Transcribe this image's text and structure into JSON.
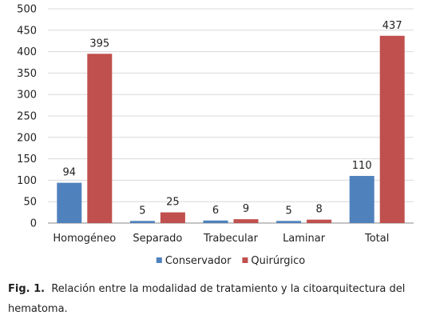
{
  "chart_data": {
    "type": "bar",
    "categories": [
      "Homogéneo",
      "Separado",
      "Trabecular",
      "Laminar",
      "Total"
    ],
    "series": [
      {
        "name": "Conservador",
        "values": [
          94,
          5,
          6,
          5,
          110
        ],
        "color": "#4f81bd"
      },
      {
        "name": "Quirúrgico",
        "values": [
          395,
          25,
          9,
          8,
          437
        ],
        "color": "#c0504d"
      }
    ],
    "ylim": [
      0,
      500
    ],
    "yticks": [
      0,
      50,
      100,
      150,
      200,
      250,
      300,
      350,
      400,
      450,
      500
    ],
    "grid": true,
    "legend": "bottom",
    "data_labels": true
  },
  "caption": {
    "lead": "Fig. 1.",
    "text": "Relación entre la modalidad de tratamiento y la citoarquitectura del hematoma."
  }
}
